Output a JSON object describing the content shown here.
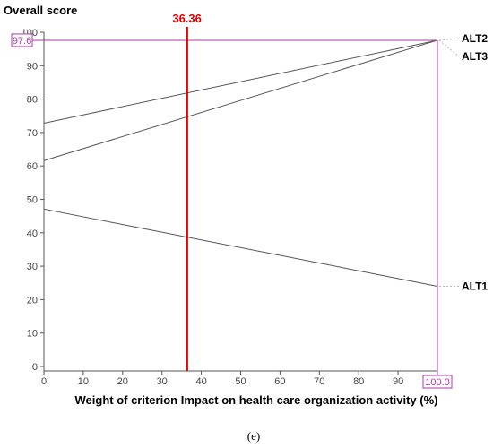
{
  "chart_data": {
    "type": "line",
    "ylabel": "Overall score",
    "xlabel": "Weight of criterion Impact on health care organization activity (%)",
    "caption": "(e)",
    "xlim": [
      0,
      100
    ],
    "ylim": [
      0,
      100
    ],
    "x_ticks": [
      0,
      10,
      20,
      30,
      40,
      50,
      60,
      70,
      80,
      90,
      100
    ],
    "y_ticks": [
      0,
      10,
      20,
      30,
      40,
      50,
      60,
      70,
      80,
      90,
      100
    ],
    "grid": false,
    "current_weight": {
      "value": 36.36,
      "label": "36.36",
      "color": "#e00000"
    },
    "highlight_x": {
      "value": 100,
      "label": "100.0",
      "color": "#b23aa8"
    },
    "highlight_y": {
      "value": 97.6,
      "label": "97.6",
      "color": "#b23aa8"
    },
    "series": [
      {
        "name": "ALT2",
        "x": [
          0,
          100
        ],
        "y": [
          72.8,
          97.6
        ]
      },
      {
        "name": "ALT3",
        "x": [
          0,
          100
        ],
        "y": [
          61.6,
          97.6
        ]
      },
      {
        "name": "ALT1",
        "x": [
          0,
          100
        ],
        "y": [
          47.1,
          24.0
        ]
      }
    ]
  }
}
